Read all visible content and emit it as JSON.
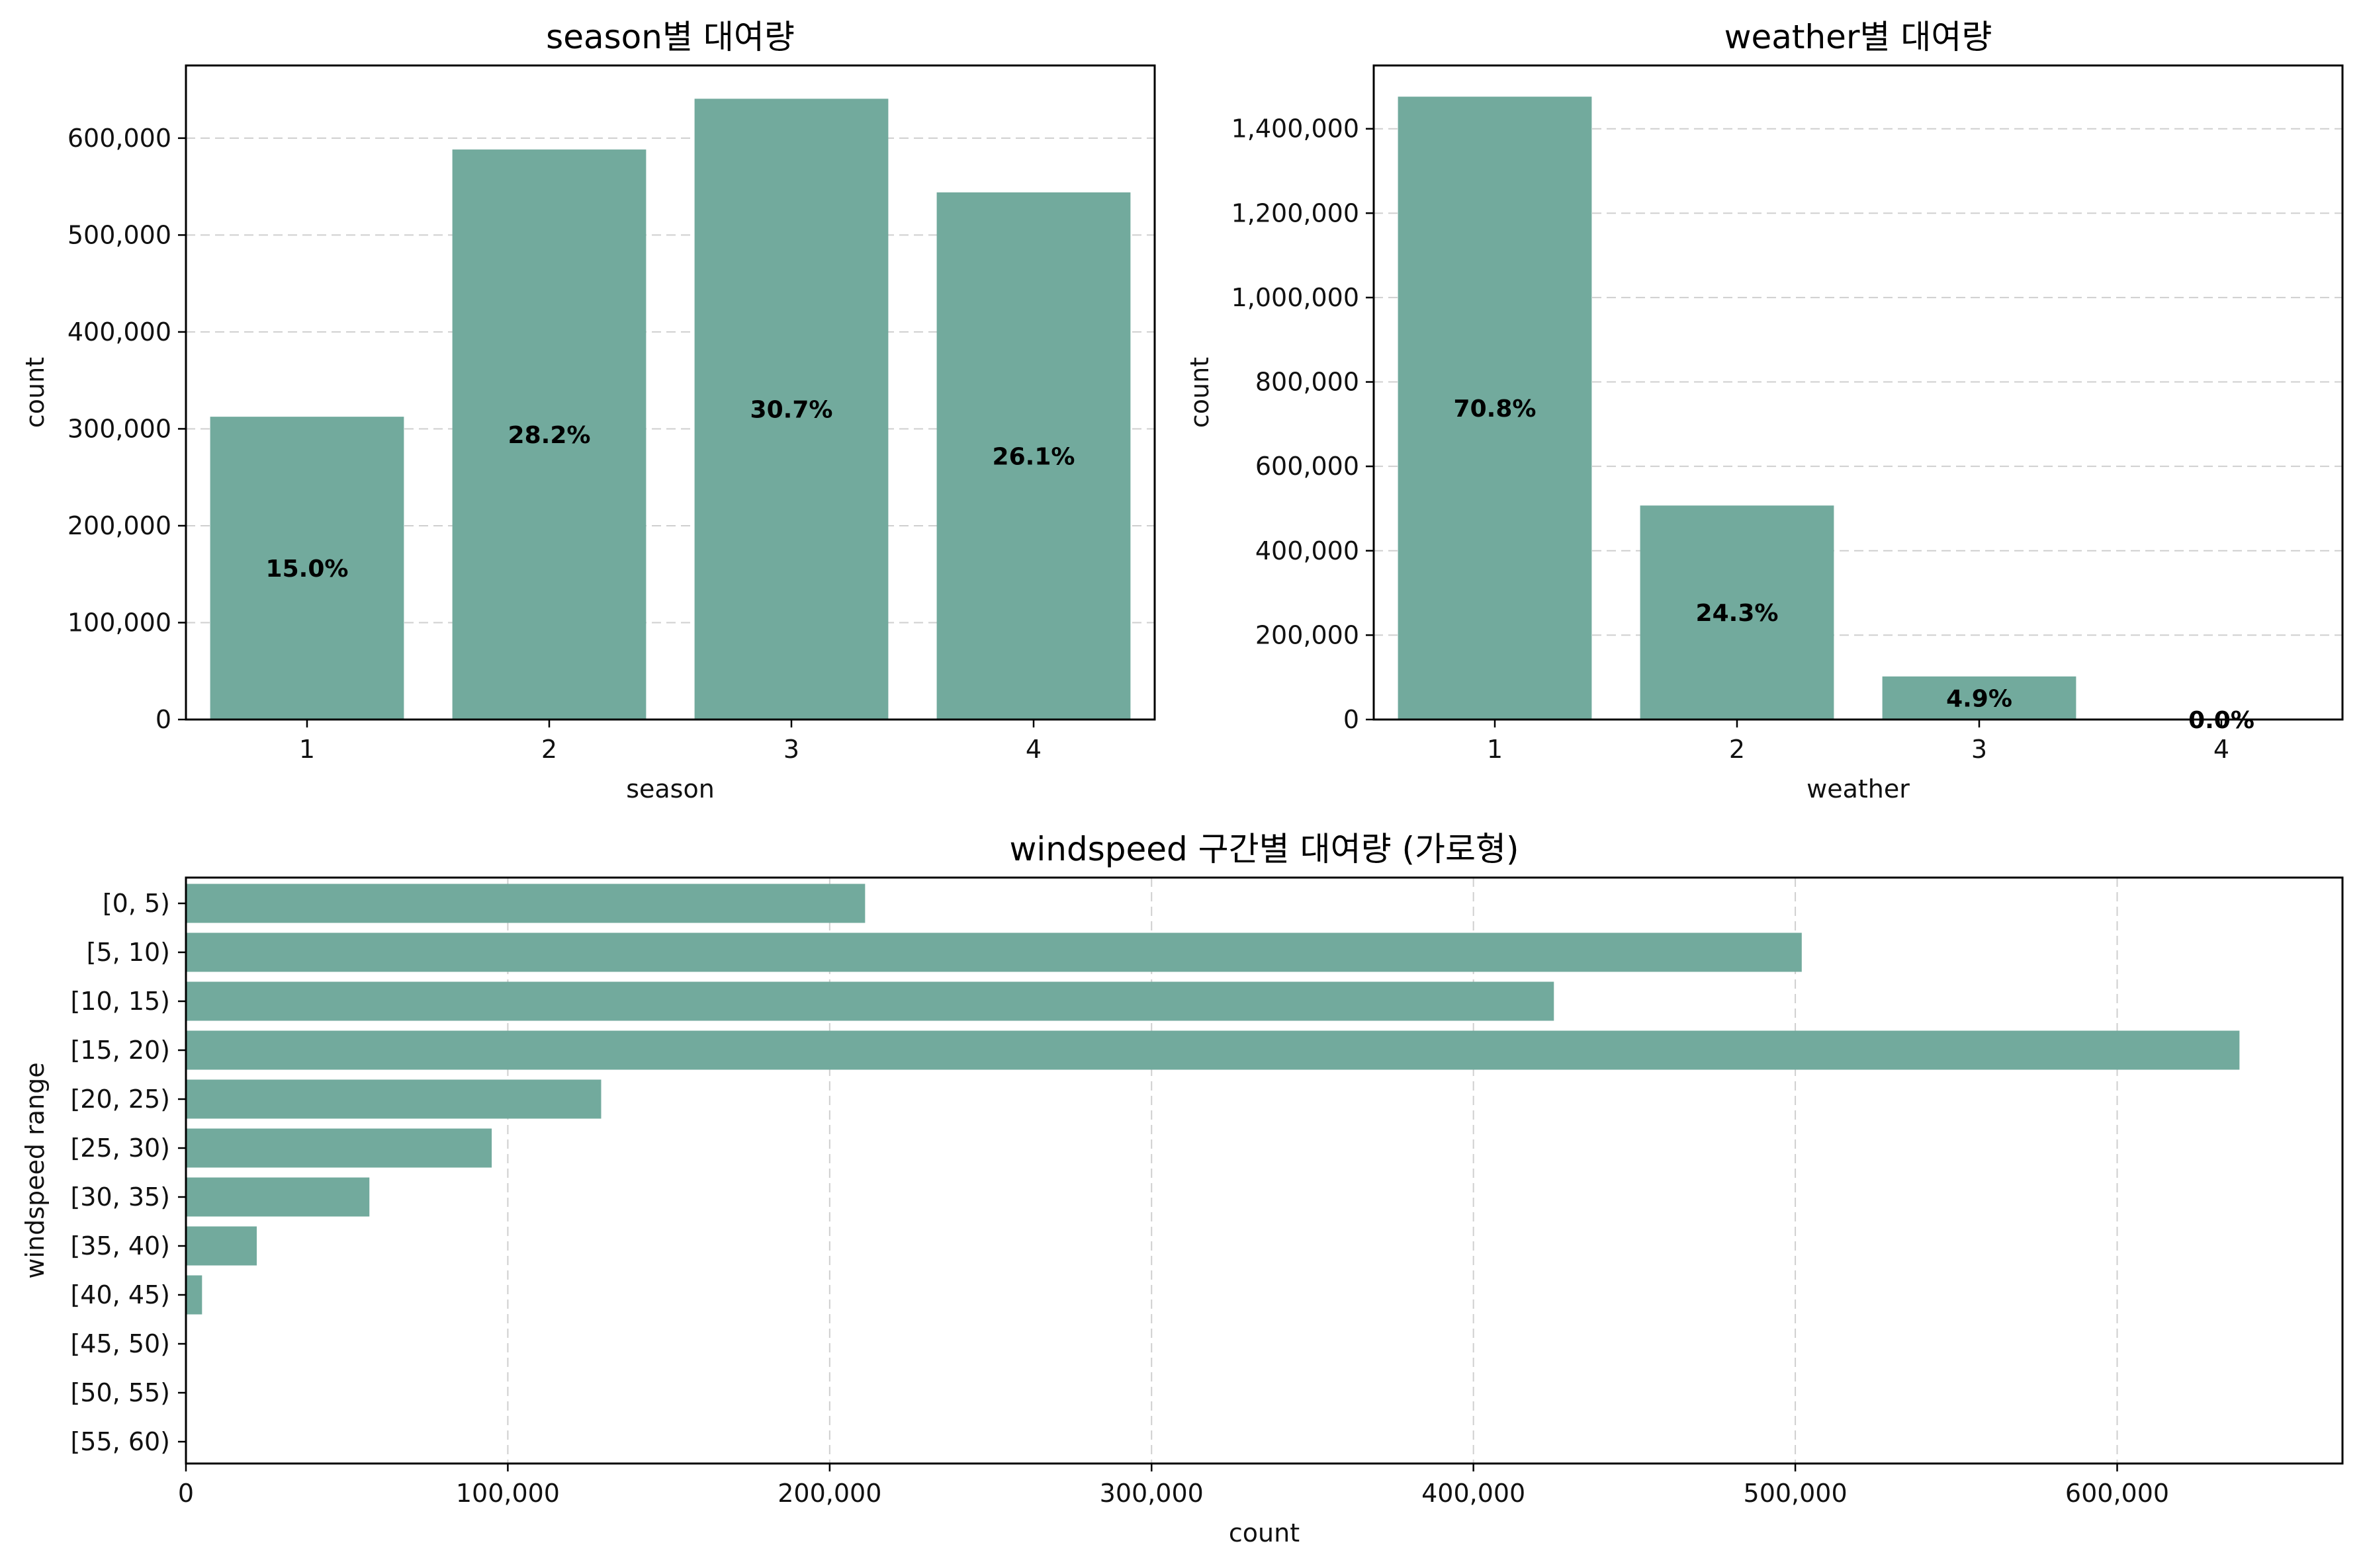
{
  "colors": {
    "bar": "#72aa9d"
  },
  "chart_data": [
    {
      "type": "bar",
      "title": "season별 대여량",
      "xlabel": "season",
      "ylabel": "count",
      "categories": [
        "1",
        "2",
        "3",
        "4"
      ],
      "values": [
        312498,
        588282,
        640662,
        544034
      ],
      "percent_labels": [
        "15.0%",
        "28.2%",
        "30.7%",
        "26.1%"
      ],
      "ylim": [
        0,
        675000
      ],
      "yticks": [
        0,
        100000,
        200000,
        300000,
        400000,
        500000,
        600000
      ],
      "ytick_labels": [
        "0",
        "100,000",
        "200,000",
        "300,000",
        "400,000",
        "500,000",
        "600,000"
      ],
      "grid": "y"
    },
    {
      "type": "bar",
      "title": "weather별 대여량",
      "xlabel": "weather",
      "ylabel": "count",
      "categories": [
        "1",
        "2",
        "3",
        "4"
      ],
      "values": [
        1476063,
        507160,
        102089,
        164
      ],
      "percent_labels": [
        "70.8%",
        "24.3%",
        "4.9%",
        "0.0%"
      ],
      "ylim": [
        0,
        1550000
      ],
      "yticks": [
        0,
        200000,
        400000,
        600000,
        800000,
        1000000,
        1200000,
        1400000
      ],
      "ytick_labels": [
        "0",
        "200,000",
        "400,000",
        "600,000",
        "800,000",
        "1,000,000",
        "1,200,000",
        "1,400,000"
      ],
      "grid": "y"
    },
    {
      "type": "bar",
      "orientation": "horizontal",
      "title": "windspeed 구간별 대여량 (가로형)",
      "xlabel": "count",
      "ylabel": "windspeed range",
      "categories": [
        "[0, 5)",
        "[5, 10)",
        "[10, 15)",
        "[15, 20)",
        "[20, 25)",
        "[25, 30)",
        "[30, 35)",
        "[35, 40)",
        "[40, 45)",
        "[45, 50)",
        "[50, 55)",
        "[55, 60)"
      ],
      "values": [
        211000,
        502000,
        425000,
        638000,
        129000,
        95000,
        57000,
        22000,
        5000,
        300,
        200,
        100
      ],
      "xlim": [
        0,
        670000
      ],
      "xticks": [
        0,
        100000,
        200000,
        300000,
        400000,
        500000,
        600000
      ],
      "xtick_labels": [
        "0",
        "100,000",
        "200,000",
        "300,000",
        "400,000",
        "500,000",
        "600,000"
      ],
      "grid": "x"
    }
  ]
}
